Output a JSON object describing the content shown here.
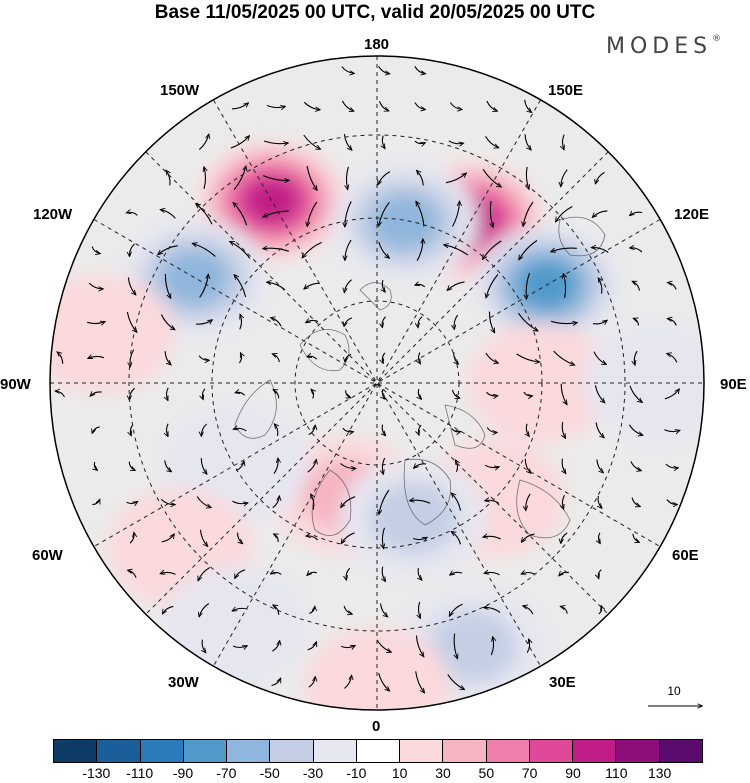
{
  "title": "Base 11/05/2025 00 UTC, valid 20/05/2025 00 UTC",
  "brand": "MODES",
  "brand_mark": "®",
  "longitude_labels": {
    "top": "180",
    "top_right": "150E",
    "right_upper": "120E",
    "right": "90E",
    "right_lower": "60E",
    "bottom_right": "30E",
    "bottom": "0",
    "bottom_left": "30W",
    "left_lower": "60W",
    "left": "90W",
    "left_upper": "120W",
    "top_left": "150W"
  },
  "reference_vector": {
    "value": "10"
  },
  "colorbar": {
    "colors": [
      "#0d3d66",
      "#1a5f99",
      "#2b7bba",
      "#4f9acb",
      "#8fb6dc",
      "#c4cfe5",
      "#e6e6f0",
      "#ffffff",
      "#fbd9dd",
      "#f6b3c1",
      "#ef7faa",
      "#e0489a",
      "#c11d87",
      "#8f0f7a",
      "#5b0a6e"
    ],
    "ticks": [
      "-130",
      "-110",
      "-90",
      "-70",
      "-50",
      "-30",
      "-10",
      "10",
      "30",
      "50",
      "70",
      "90",
      "110",
      "130"
    ]
  },
  "anomaly_centers": [
    {
      "lon": -150,
      "lat": 45,
      "value": 95
    },
    {
      "lon": 150,
      "lat": 50,
      "value": 100
    },
    {
      "lon": 170,
      "lat": 55,
      "value": -60
    },
    {
      "lon": 120,
      "lat": 48,
      "value": -80
    },
    {
      "lon": -120,
      "lat": 45,
      "value": -60
    },
    {
      "lon": -100,
      "lat": 30,
      "value": 30
    },
    {
      "lon": 90,
      "lat": 55,
      "value": 25
    },
    {
      "lon": 45,
      "lat": 55,
      "value": 30
    },
    {
      "lon": -15,
      "lat": 65,
      "value": 35
    },
    {
      "lon": 15,
      "lat": 60,
      "value": -35
    },
    {
      "lon": -60,
      "lat": 55,
      "value": -25
    },
    {
      "lon": -50,
      "lat": 35,
      "value": 25
    },
    {
      "lon": 20,
      "lat": 30,
      "value": -40
    },
    {
      "lon": 0,
      "lat": 25,
      "value": 30
    },
    {
      "lon": -30,
      "lat": 30,
      "value": -20
    },
    {
      "lon": 90,
      "lat": 30,
      "value": -25
    }
  ]
}
